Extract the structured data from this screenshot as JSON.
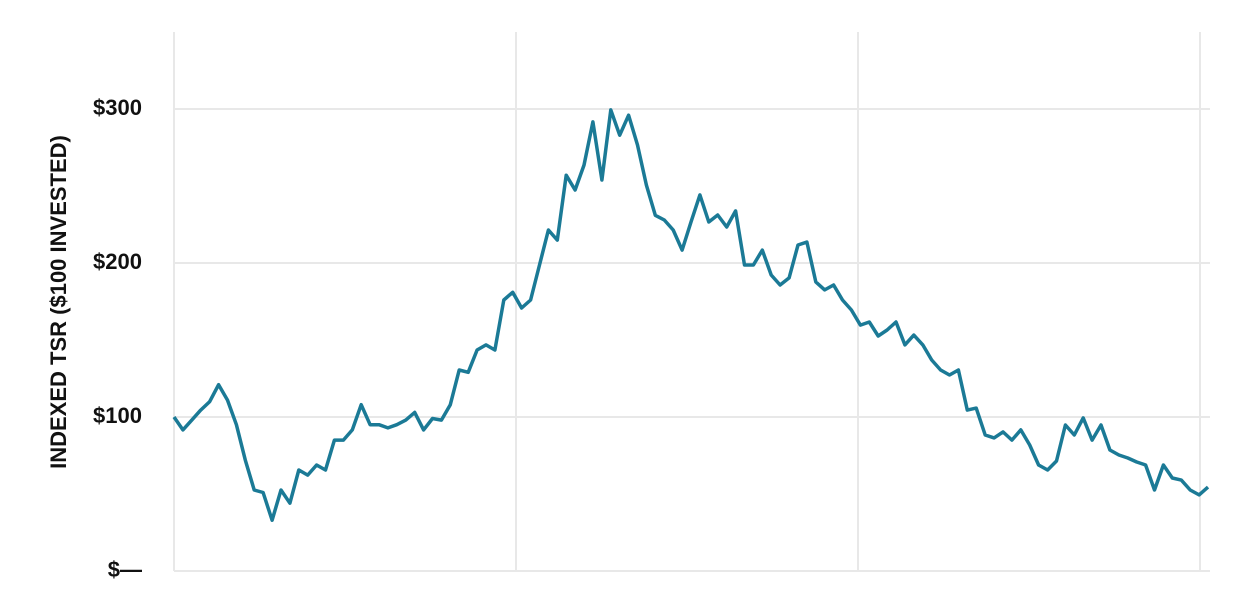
{
  "chart_data": {
    "type": "line",
    "y_label": "INDEXED TSR ($100 INVESTED)",
    "ylim": [
      0,
      350
    ],
    "yticks": [
      {
        "value": 0,
        "label": "$—"
      },
      {
        "value": 100,
        "label": "$100"
      },
      {
        "value": 200,
        "label": "$200"
      },
      {
        "value": 300,
        "label": "$300"
      }
    ],
    "grid": true,
    "color": "#1b7a96",
    "values": [
      100,
      91.6,
      98,
      104.5,
      110,
      121,
      111,
      95,
      72,
      52.6,
      51,
      33,
      52.6,
      44,
      65.6,
      62.3,
      68.8,
      65.6,
      85,
      85,
      91.6,
      108,
      95,
      95,
      92.9,
      95,
      98,
      103,
      91.6,
      99,
      98,
      108,
      130.5,
      129,
      143.5,
      146.8,
      143.5,
      176,
      181,
      170.8,
      176,
      198.7,
      221.4,
      214.9,
      257,
      247.4,
      263.6,
      291.6,
      253.9,
      299.4,
      283,
      296,
      276.6,
      250.6,
      231,
      227.9,
      221.4,
      208.4,
      226.6,
      244.2,
      226.6,
      231.2,
      223.4,
      233.8,
      198.7,
      198.7,
      208.4,
      192.2,
      185.7,
      190.3,
      211.7,
      213.6,
      187.7,
      182.5,
      185.7,
      176,
      169.5,
      159.7,
      161.7,
      152.6,
      156.5,
      161.7,
      146.8,
      153.2,
      146.8,
      137,
      130.5,
      127.3,
      130.5,
      104.5,
      105.8,
      88.3,
      86.4,
      90.3,
      85,
      91.6,
      81.8,
      68.8,
      65.6,
      71.4,
      94.8,
      88.3,
      99.4,
      85,
      94.8,
      78.6,
      75.3,
      73.4,
      70.8,
      68.8,
      52.6,
      68.8,
      60.4,
      59,
      52.6,
      49.4,
      54.5
    ]
  }
}
